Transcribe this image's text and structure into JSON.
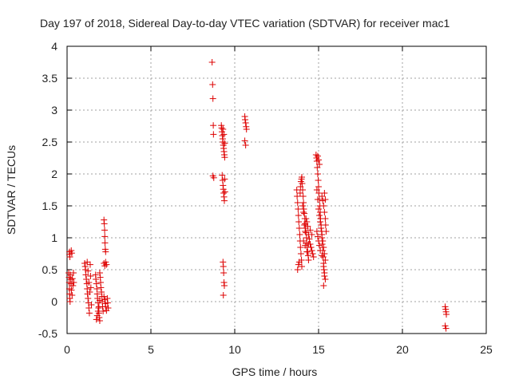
{
  "chart_data": {
    "type": "scatter",
    "title": "Day 197 of 2018, Sidereal Day-to-day VTEC variation (SDTVAR) for receiver mac1",
    "xlabel": "GPS time / hours",
    "ylabel": "SDTVAR / TECUs",
    "xlim": [
      0,
      25
    ],
    "ylim": [
      -0.5,
      4
    ],
    "xticks": [
      0,
      5,
      10,
      15,
      20,
      25
    ],
    "yticks": [
      -0.5,
      0,
      0.5,
      1,
      1.5,
      2,
      2.5,
      3,
      3.5,
      4
    ],
    "xtick_labels": [
      "0",
      "5",
      "10",
      "15",
      "20",
      "25"
    ],
    "ytick_labels": [
      "-0.5",
      "0",
      "0.5",
      "1",
      "1.5",
      "2",
      "2.5",
      "3",
      "3.5",
      "4"
    ],
    "grid": true,
    "marker": "+",
    "marker_color": "#dd0000",
    "series": [
      {
        "name": "SDTVAR",
        "points": [
          [
            0.15,
            0.78
          ],
          [
            0.15,
            0.74
          ],
          [
            0.17,
            0.7
          ],
          [
            0.25,
            0.8
          ],
          [
            0.28,
            0.76
          ],
          [
            0.1,
            0.45
          ],
          [
            0.12,
            0.38
          ],
          [
            0.13,
            0.3
          ],
          [
            0.14,
            0.2
          ],
          [
            0.15,
            0.12
          ],
          [
            0.16,
            0.05
          ],
          [
            0.18,
            0.0
          ],
          [
            0.2,
            0.42
          ],
          [
            0.22,
            0.35
          ],
          [
            0.24,
            0.28
          ],
          [
            0.26,
            0.18
          ],
          [
            0.3,
            0.1
          ],
          [
            0.32,
            0.36
          ],
          [
            0.35,
            0.25
          ],
          [
            0.38,
            0.45
          ],
          [
            0.4,
            0.3
          ],
          [
            1.05,
            0.6
          ],
          [
            1.08,
            0.55
          ],
          [
            1.1,
            0.5
          ],
          [
            1.12,
            0.42
          ],
          [
            1.15,
            0.35
          ],
          [
            1.18,
            0.28
          ],
          [
            1.2,
            0.2
          ],
          [
            1.22,
            0.12
          ],
          [
            1.25,
            0.05
          ],
          [
            1.28,
            -0.02
          ],
          [
            1.3,
            -0.1
          ],
          [
            1.33,
            -0.18
          ],
          [
            1.2,
            0.62
          ],
          [
            1.25,
            0.48
          ],
          [
            1.3,
            0.3
          ],
          [
            1.35,
            0.15
          ],
          [
            1.38,
            0.58
          ],
          [
            1.4,
            0.4
          ],
          [
            1.42,
            0.22
          ],
          [
            1.45,
            -0.05
          ],
          [
            1.7,
            0.42
          ],
          [
            1.72,
            0.35
          ],
          [
            1.75,
            0.28
          ],
          [
            1.78,
            0.2
          ],
          [
            1.8,
            0.12
          ],
          [
            1.82,
            0.05
          ],
          [
            1.85,
            -0.02
          ],
          [
            1.88,
            -0.1
          ],
          [
            1.9,
            -0.18
          ],
          [
            1.92,
            -0.25
          ],
          [
            1.95,
            -0.3
          ],
          [
            1.75,
            -0.28
          ],
          [
            1.8,
            -0.22
          ],
          [
            1.85,
            -0.15
          ],
          [
            1.9,
            -0.08
          ],
          [
            1.95,
            0.02
          ],
          [
            1.95,
            0.45
          ],
          [
            1.98,
            0.38
          ],
          [
            2.0,
            0.3
          ],
          [
            2.02,
            0.22
          ],
          [
            2.05,
            0.15
          ],
          [
            2.08,
            0.08
          ],
          [
            2.1,
            0.0
          ],
          [
            2.12,
            -0.08
          ],
          [
            2.15,
            -0.15
          ],
          [
            2.2,
            1.28
          ],
          [
            2.22,
            1.22
          ],
          [
            2.24,
            1.12
          ],
          [
            2.25,
            1.02
          ],
          [
            2.26,
            0.92
          ],
          [
            2.28,
            0.82
          ],
          [
            2.3,
            0.78
          ],
          [
            2.2,
            0.6
          ],
          [
            2.25,
            0.56
          ],
          [
            2.3,
            0.62
          ],
          [
            2.35,
            0.58
          ],
          [
            2.2,
            0.08
          ],
          [
            2.25,
            0.03
          ],
          [
            2.28,
            -0.03
          ],
          [
            2.3,
            -0.08
          ],
          [
            2.35,
            -0.14
          ],
          [
            2.4,
            0.05
          ],
          [
            2.42,
            -0.02
          ],
          [
            2.45,
            -0.1
          ],
          [
            8.65,
            3.75
          ],
          [
            8.68,
            3.4
          ],
          [
            8.7,
            3.18
          ],
          [
            8.72,
            2.76
          ],
          [
            8.73,
            2.62
          ],
          [
            8.7,
            1.97
          ],
          [
            8.75,
            1.94
          ],
          [
            9.2,
            2.76
          ],
          [
            9.22,
            2.72
          ],
          [
            9.24,
            2.66
          ],
          [
            9.26,
            2.6
          ],
          [
            9.28,
            2.55
          ],
          [
            9.3,
            2.5
          ],
          [
            9.32,
            2.45
          ],
          [
            9.34,
            2.4
          ],
          [
            9.36,
            2.35
          ],
          [
            9.38,
            2.3
          ],
          [
            9.4,
            2.26
          ],
          [
            9.3,
            2.7
          ],
          [
            9.35,
            2.62
          ],
          [
            9.4,
            2.48
          ],
          [
            9.25,
            1.98
          ],
          [
            9.28,
            1.9
          ],
          [
            9.3,
            1.82
          ],
          [
            9.32,
            1.76
          ],
          [
            9.34,
            1.7
          ],
          [
            9.36,
            1.64
          ],
          [
            9.38,
            1.58
          ],
          [
            9.4,
            1.92
          ],
          [
            9.42,
            1.72
          ],
          [
            9.3,
            0.62
          ],
          [
            9.32,
            0.55
          ],
          [
            9.34,
            0.45
          ],
          [
            9.36,
            0.3
          ],
          [
            9.38,
            0.25
          ],
          [
            9.32,
            0.1
          ],
          [
            10.6,
            2.9
          ],
          [
            10.62,
            2.85
          ],
          [
            10.65,
            2.8
          ],
          [
            10.68,
            2.74
          ],
          [
            10.7,
            2.7
          ],
          [
            10.6,
            2.52
          ],
          [
            10.65,
            2.45
          ],
          [
            13.7,
            1.75
          ],
          [
            13.72,
            1.65
          ],
          [
            13.75,
            1.55
          ],
          [
            13.78,
            1.45
          ],
          [
            13.8,
            1.35
          ],
          [
            13.82,
            1.25
          ],
          [
            13.85,
            1.15
          ],
          [
            13.88,
            1.05
          ],
          [
            13.9,
            0.95
          ],
          [
            13.92,
            0.85
          ],
          [
            13.95,
            0.75
          ],
          [
            13.98,
            0.65
          ],
          [
            14.0,
            0.55
          ],
          [
            13.75,
            0.5
          ],
          [
            13.8,
            0.58
          ],
          [
            13.85,
            0.62
          ],
          [
            13.9,
            1.7
          ],
          [
            13.92,
            1.8
          ],
          [
            13.95,
            1.88
          ],
          [
            13.98,
            1.92
          ],
          [
            14.0,
            1.95
          ],
          [
            14.02,
            1.85
          ],
          [
            14.05,
            1.75
          ],
          [
            14.08,
            1.65
          ],
          [
            14.1,
            1.55
          ],
          [
            14.12,
            1.45
          ],
          [
            14.15,
            1.38
          ],
          [
            14.18,
            1.3
          ],
          [
            14.2,
            1.22
          ],
          [
            14.22,
            1.15
          ],
          [
            14.25,
            1.08
          ],
          [
            14.28,
            1.0
          ],
          [
            14.3,
            0.92
          ],
          [
            14.32,
            0.85
          ],
          [
            14.35,
            0.78
          ],
          [
            14.38,
            0.72
          ],
          [
            14.4,
            0.65
          ],
          [
            14.05,
            1.5
          ],
          [
            14.1,
            1.4
          ],
          [
            14.15,
            1.2
          ],
          [
            14.2,
            1.1
          ],
          [
            14.25,
            1.3
          ],
          [
            14.3,
            1.25
          ],
          [
            14.35,
            1.18
          ],
          [
            14.4,
            1.05
          ],
          [
            14.45,
            0.98
          ],
          [
            14.5,
            0.9
          ],
          [
            14.55,
            0.85
          ],
          [
            14.6,
            0.8
          ],
          [
            14.65,
            0.75
          ],
          [
            14.7,
            0.7
          ],
          [
            14.1,
            0.95
          ],
          [
            14.2,
            0.88
          ],
          [
            14.3,
            0.78
          ],
          [
            14.4,
            0.9
          ],
          [
            14.5,
            1.12
          ],
          [
            14.6,
            1.05
          ],
          [
            14.85,
            2.3
          ],
          [
            14.88,
            2.25
          ],
          [
            14.9,
            2.2
          ],
          [
            14.92,
            2.1
          ],
          [
            14.95,
            2.0
          ],
          [
            14.98,
            1.9
          ],
          [
            15.0,
            1.8
          ],
          [
            15.02,
            1.7
          ],
          [
            15.05,
            1.6
          ],
          [
            15.08,
            1.5
          ],
          [
            15.1,
            1.4
          ],
          [
            15.12,
            1.3
          ],
          [
            15.15,
            1.2
          ],
          [
            15.18,
            1.1
          ],
          [
            15.2,
            1.0
          ],
          [
            15.22,
            0.9
          ],
          [
            15.25,
            0.8
          ],
          [
            15.28,
            0.7
          ],
          [
            15.3,
            0.6
          ],
          [
            15.32,
            0.5
          ],
          [
            15.35,
            0.4
          ],
          [
            14.9,
            1.75
          ],
          [
            14.95,
            1.6
          ],
          [
            15.0,
            1.45
          ],
          [
            15.05,
            1.35
          ],
          [
            15.1,
            1.25
          ],
          [
            15.15,
            1.15
          ],
          [
            15.2,
            1.05
          ],
          [
            15.25,
            0.95
          ],
          [
            15.3,
            0.85
          ],
          [
            15.35,
            0.75
          ],
          [
            15.4,
            0.65
          ],
          [
            14.9,
            1.1
          ],
          [
            14.95,
            1.02
          ],
          [
            15.0,
            0.95
          ],
          [
            15.05,
            0.88
          ],
          [
            15.1,
            0.8
          ],
          [
            15.2,
            0.72
          ],
          [
            15.3,
            0.55
          ],
          [
            15.35,
            0.45
          ],
          [
            15.4,
            0.35
          ],
          [
            15.3,
            0.25
          ],
          [
            15.2,
            1.65
          ],
          [
            15.25,
            1.58
          ],
          [
            15.3,
            1.5
          ],
          [
            15.35,
            1.4
          ],
          [
            15.4,
            1.3
          ],
          [
            15.42,
            1.2
          ],
          [
            15.45,
            1.1
          ],
          [
            15.4,
            1.6
          ],
          [
            15.35,
            1.7
          ],
          [
            14.95,
            2.28
          ],
          [
            15.0,
            2.22
          ],
          [
            15.05,
            2.15
          ],
          [
            22.55,
            -0.08
          ],
          [
            22.58,
            -0.12
          ],
          [
            22.6,
            -0.16
          ],
          [
            22.62,
            -0.2
          ],
          [
            22.55,
            -0.38
          ],
          [
            22.6,
            -0.42
          ]
        ]
      }
    ]
  }
}
